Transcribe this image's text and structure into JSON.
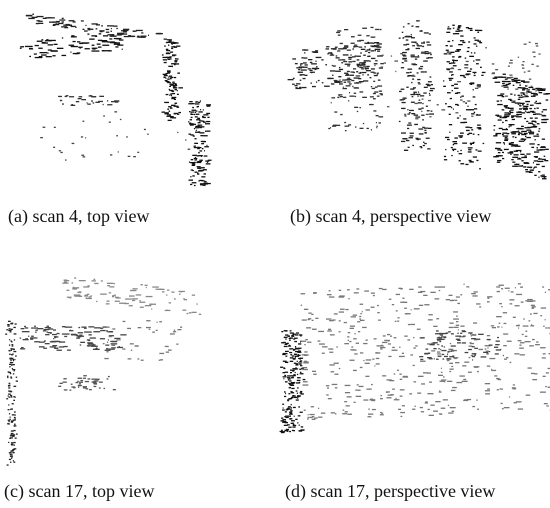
{
  "figure": {
    "captions": [
      "(a)  scan 4, top view",
      "(b)  scan 4, perspective view",
      "(c)  scan 17, top view",
      "(d)  scan 17, perspective view"
    ]
  }
}
